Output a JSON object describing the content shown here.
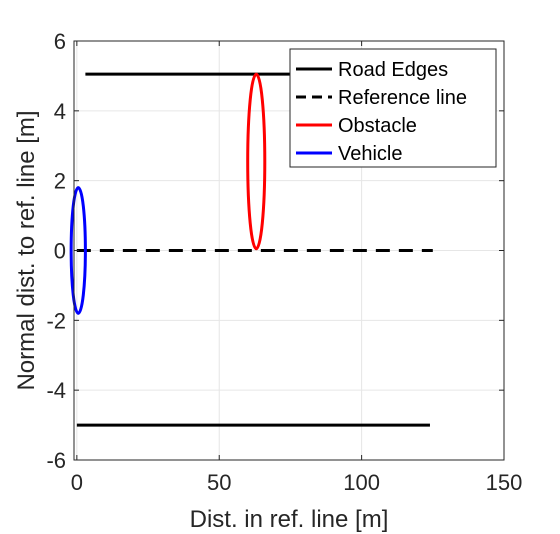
{
  "chart_data": {
    "type": "line",
    "title": "",
    "xlabel": "Dist. in ref. line [m]",
    "ylabel": "Normal dist. to ref. line [m]",
    "xlim": [
      -1,
      150
    ],
    "ylim": [
      -6,
      6
    ],
    "xticks": [
      0,
      50,
      100,
      150
    ],
    "yticks": [
      -6,
      -4,
      -2,
      0,
      2,
      4,
      6
    ],
    "xtick_labels": [
      "0",
      "50",
      "100",
      "150"
    ],
    "ytick_labels": [
      "-6",
      "-4",
      "-2",
      "0",
      "2",
      "4",
      "6"
    ],
    "grid": true,
    "legend_position": "top-right",
    "series": [
      {
        "name": "Road Edges",
        "color": "#000000",
        "style": "solid",
        "segments": [
          {
            "x": [
              3,
              125
            ],
            "y": [
              5.05,
              5.05
            ]
          },
          {
            "x": [
              0,
              124
            ],
            "y": [
              -5.0,
              -5.0
            ]
          }
        ]
      },
      {
        "name": "Reference line",
        "color": "#000000",
        "style": "dashed",
        "segments": [
          {
            "x": [
              0,
              125
            ],
            "y": [
              0,
              0
            ]
          }
        ]
      },
      {
        "name": "Obstacle",
        "color": "#ff0000",
        "style": "solid",
        "shape": "ellipse",
        "center": [
          63,
          2.55
        ],
        "radius_x": 3,
        "radius_y": 2.5
      },
      {
        "name": "Vehicle",
        "color": "#0000ff",
        "style": "solid",
        "shape": "ellipse",
        "center": [
          0.5,
          0
        ],
        "radius_x": 2.5,
        "radius_y": 1.8
      }
    ]
  }
}
